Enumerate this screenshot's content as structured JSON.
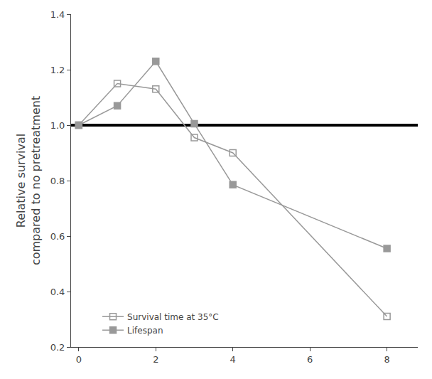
{
  "chart_data": {
    "type": "line",
    "ylabel": "Relative survival\ncompared to no pretreatment",
    "x": [
      0,
      1,
      2,
      3,
      4,
      8
    ],
    "series": [
      {
        "name": "Survival time at 35°C",
        "color": "#999999",
        "marker": "square-open",
        "values": [
          1.0,
          1.15,
          1.13,
          0.955,
          0.9,
          0.31
        ]
      },
      {
        "name": "Lifespan",
        "color": "#999999",
        "marker": "square",
        "values": [
          1.0,
          1.07,
          1.23,
          1.005,
          0.785,
          0.555
        ]
      }
    ],
    "hline": {
      "y": 1.0,
      "color": "#000000"
    },
    "xlim": [
      -0.2,
      8.8
    ],
    "ylim": [
      0.2,
      1.4
    ],
    "xticks": [
      0,
      2,
      4,
      6,
      8
    ],
    "yticks": [
      0.2,
      0.4,
      0.6,
      0.8,
      {
        "value": 1.0,
        "label": "1.0"
      },
      1.2,
      1.4
    ],
    "grid": false,
    "legend": "lower left"
  }
}
